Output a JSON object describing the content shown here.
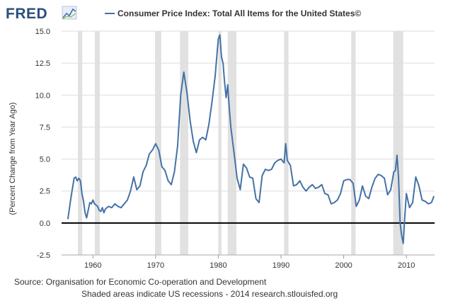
{
  "logo": {
    "text": "FRED"
  },
  "legend": {
    "label": "Consumer Price Index: Total All Items for the United States©"
  },
  "footer": {
    "source": "Source: Organisation for Economic Co-operation and Development",
    "note": "Shaded areas indicate US recessions - 2014 research.stlouisfed.org"
  },
  "colors": {
    "series": "#4572a7",
    "recession": "#e1e1e1",
    "zero_line": "#000000",
    "grid": "#dddddd",
    "logo": "#2b4f7b"
  },
  "chart_data": {
    "type": "line",
    "title": "",
    "xlabel": "",
    "ylabel": "(Percent Change from Year Ago)",
    "xlim": [
      1955.0,
      2014.5
    ],
    "ylim": [
      -2.5,
      15
    ],
    "grid": true,
    "zero_line": true,
    "legend_position": "top",
    "x_ticks": [
      1960,
      1970,
      1980,
      1990,
      2000,
      2010
    ],
    "x_tick_labels": [
      "1960",
      "1970",
      "1980",
      "1990",
      "2000",
      "2010"
    ],
    "y_ticks": [
      -2.5,
      0,
      2.5,
      5,
      7.5,
      10,
      12.5,
      15
    ],
    "y_tick_labels": [
      "-2.5",
      "0.0",
      "2.5",
      "5.0",
      "7.5",
      "10.0",
      "12.5",
      "15.0"
    ],
    "recessions": [
      [
        1957.6,
        1958.3
      ],
      [
        1960.3,
        1961.1
      ],
      [
        1969.9,
        1970.9
      ],
      [
        1973.9,
        1975.2
      ],
      [
        1980.0,
        1980.5
      ],
      [
        1981.5,
        1982.9
      ],
      [
        1990.5,
        1991.2
      ],
      [
        2001.2,
        2001.9
      ],
      [
        2007.9,
        2009.5
      ]
    ],
    "series": [
      {
        "name": "Consumer Price Index: Total All Items for the United States©",
        "x": [
          1956.0,
          1956.5,
          1957.0,
          1957.25,
          1957.5,
          1957.75,
          1958.0,
          1958.25,
          1958.5,
          1958.75,
          1959.0,
          1959.25,
          1959.5,
          1959.75,
          1960.0,
          1960.25,
          1960.5,
          1960.75,
          1961.0,
          1961.25,
          1961.5,
          1961.75,
          1962.0,
          1962.5,
          1963.0,
          1963.5,
          1964.0,
          1964.5,
          1965.0,
          1965.5,
          1966.0,
          1966.5,
          1967.0,
          1967.5,
          1968.0,
          1968.5,
          1969.0,
          1969.5,
          1970.0,
          1970.5,
          1971.0,
          1971.5,
          1972.0,
          1972.5,
          1973.0,
          1973.5,
          1974.0,
          1974.5,
          1975.0,
          1975.5,
          1976.0,
          1976.5,
          1977.0,
          1977.5,
          1978.0,
          1978.5,
          1979.0,
          1979.5,
          1980.0,
          1980.25,
          1980.5,
          1980.75,
          1981.0,
          1981.25,
          1981.5,
          1981.75,
          1982.0,
          1982.5,
          1983.0,
          1983.5,
          1984.0,
          1984.5,
          1985.0,
          1985.5,
          1986.0,
          1986.5,
          1987.0,
          1987.5,
          1988.0,
          1988.5,
          1989.0,
          1989.5,
          1990.0,
          1990.5,
          1990.75,
          1991.0,
          1991.5,
          1992.0,
          1992.5,
          1993.0,
          1993.5,
          1994.0,
          1994.5,
          1995.0,
          1995.5,
          1996.0,
          1996.5,
          1997.0,
          1997.5,
          1998.0,
          1998.5,
          1999.0,
          1999.5,
          2000.0,
          2000.5,
          2001.0,
          2001.5,
          2002.0,
          2002.5,
          2003.0,
          2003.5,
          2004.0,
          2004.5,
          2005.0,
          2005.5,
          2006.0,
          2006.5,
          2007.0,
          2007.5,
          2008.0,
          2008.25,
          2008.5,
          2008.75,
          2009.0,
          2009.25,
          2009.5,
          2009.75,
          2010.0,
          2010.5,
          2011.0,
          2011.5,
          2012.0,
          2012.5,
          2013.0,
          2013.5,
          2014.0,
          2014.4
        ],
        "values": [
          0.3,
          2.0,
          3.5,
          3.6,
          3.3,
          3.5,
          3.3,
          2.3,
          1.7,
          0.8,
          0.4,
          1.0,
          1.6,
          1.5,
          1.8,
          1.5,
          1.4,
          1.3,
          1.0,
          0.9,
          1.2,
          0.8,
          1.1,
          1.3,
          1.2,
          1.5,
          1.3,
          1.2,
          1.5,
          1.8,
          2.5,
          3.6,
          2.6,
          2.9,
          4.0,
          4.5,
          5.4,
          5.7,
          6.2,
          5.7,
          4.4,
          4.1,
          3.3,
          3.0,
          4.0,
          6.0,
          10.0,
          11.8,
          10.2,
          8.0,
          6.4,
          5.5,
          6.5,
          6.7,
          6.5,
          7.7,
          9.5,
          11.5,
          14.4,
          14.7,
          13.0,
          12.5,
          11.0,
          9.8,
          10.8,
          9.0,
          7.5,
          5.5,
          3.5,
          2.6,
          4.6,
          4.3,
          3.6,
          3.5,
          1.9,
          1.6,
          3.7,
          4.2,
          4.1,
          4.2,
          4.7,
          4.9,
          5.0,
          4.7,
          6.2,
          4.9,
          4.5,
          2.9,
          3.0,
          3.3,
          2.8,
          2.5,
          2.8,
          3.0,
          2.7,
          2.8,
          3.0,
          2.3,
          2.2,
          1.5,
          1.6,
          1.8,
          2.3,
          3.3,
          3.4,
          3.4,
          3.1,
          1.3,
          1.8,
          2.9,
          2.1,
          1.9,
          2.8,
          3.5,
          3.8,
          3.7,
          3.5,
          2.2,
          2.6,
          4.0,
          4.1,
          5.3,
          3.5,
          0.0,
          -1.0,
          -1.6,
          0.5,
          2.3,
          1.2,
          1.6,
          3.6,
          2.9,
          1.8,
          1.7,
          1.5,
          1.6,
          2.1
        ]
      }
    ]
  }
}
